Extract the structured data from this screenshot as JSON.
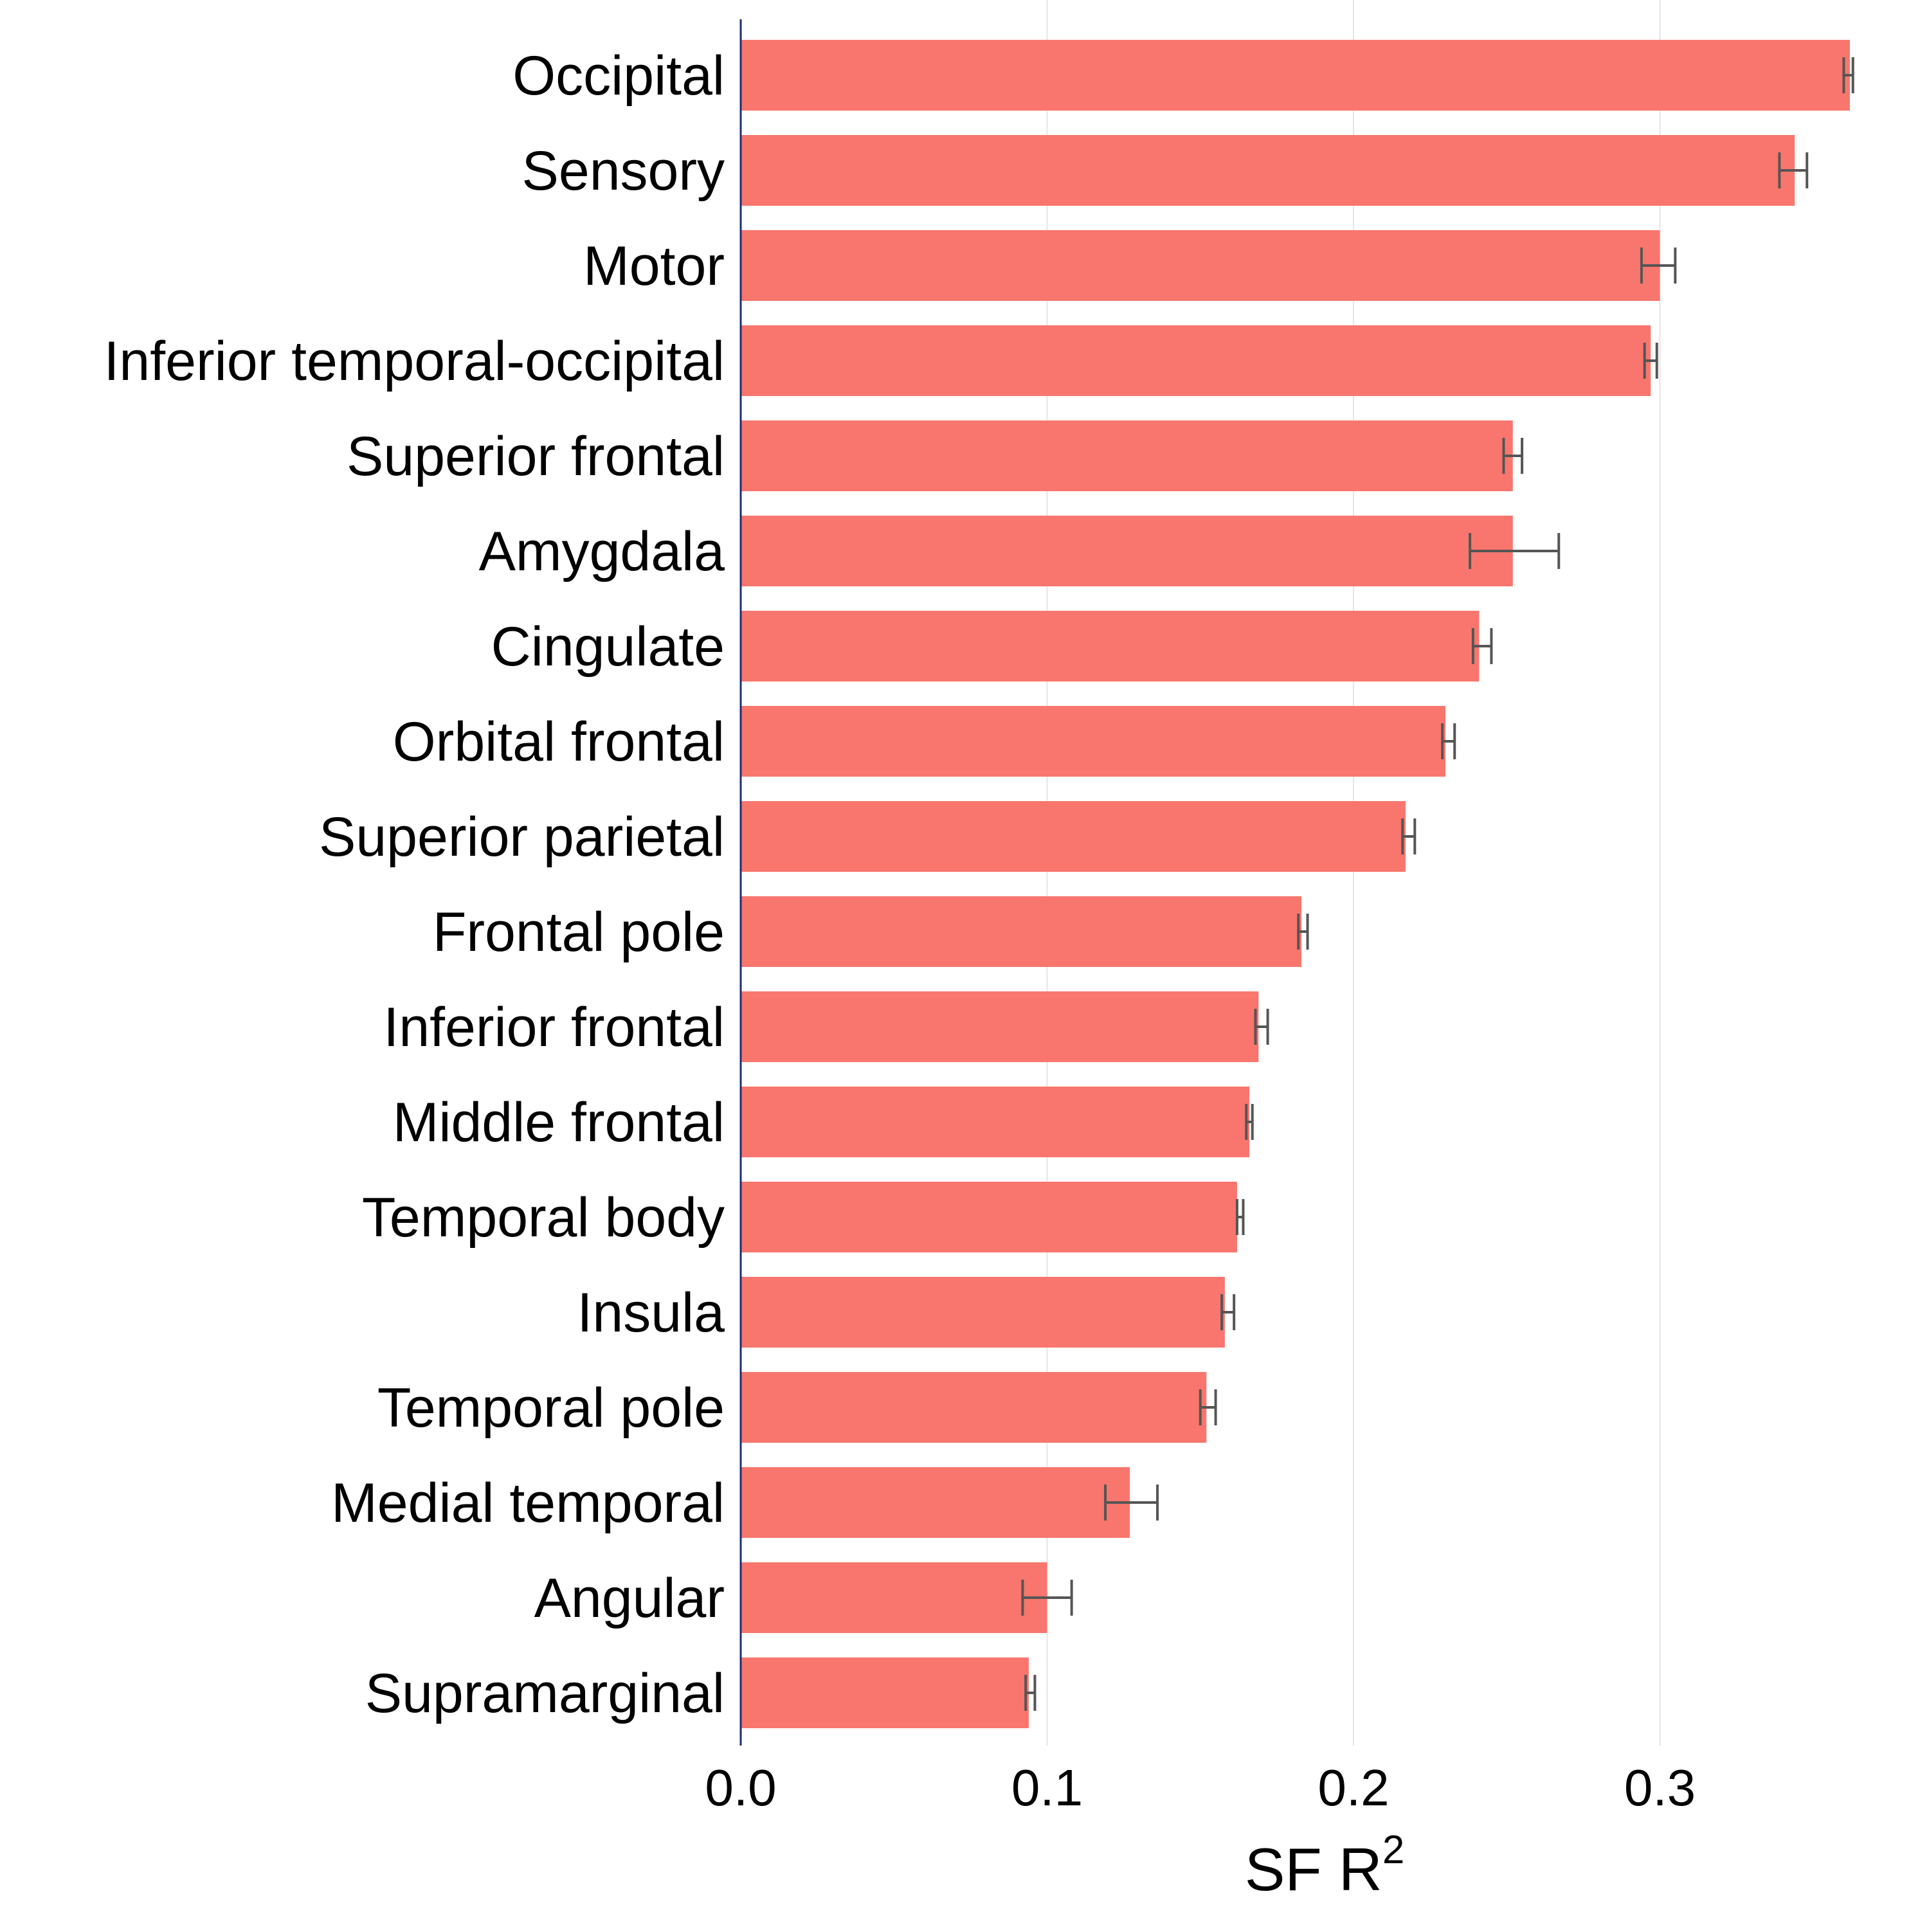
{
  "chart_data": {
    "type": "bar",
    "orientation": "horizontal",
    "title": "",
    "xlabel": "SF R",
    "xlabel_superscript": "2",
    "ylabel": "",
    "xlim": [
      0,
      0.37
    ],
    "xticks": [
      0.0,
      0.1,
      0.2,
      0.3
    ],
    "xtick_labels": [
      "0.0",
      "0.1",
      "0.2",
      "0.3"
    ],
    "grid": "vertical major gridlines",
    "legend": "none",
    "bar_color": "#F8766D",
    "error_bar_color": "#555555",
    "axis_color": "#1f2d6e",
    "grid_color": "#e5e5e5",
    "categories": [
      "Occipital",
      "Sensory",
      "Motor",
      "Inferior temporal-occipital",
      "Superior frontal",
      "Amygdala",
      "Cingulate",
      "Orbital frontal",
      "Superior parietal",
      "Frontal pole",
      "Inferior frontal",
      "Middle frontal",
      "Temporal body",
      "Insula",
      "Temporal pole",
      "Medial temporal",
      "Angular",
      "Supramarginal"
    ],
    "values": [
      0.362,
      0.344,
      0.3,
      0.297,
      0.252,
      0.252,
      0.241,
      0.23,
      0.217,
      0.183,
      0.169,
      0.166,
      0.162,
      0.158,
      0.152,
      0.127,
      0.1,
      0.094
    ],
    "error_low": [
      0.36,
      0.339,
      0.294,
      0.295,
      0.249,
      0.238,
      0.239,
      0.229,
      0.216,
      0.182,
      0.168,
      0.165,
      0.162,
      0.157,
      0.15,
      0.119,
      0.092,
      0.093
    ],
    "error_high": [
      0.363,
      0.348,
      0.305,
      0.299,
      0.255,
      0.267,
      0.245,
      0.233,
      0.22,
      0.185,
      0.172,
      0.167,
      0.164,
      0.161,
      0.155,
      0.136,
      0.108,
      0.096
    ]
  }
}
